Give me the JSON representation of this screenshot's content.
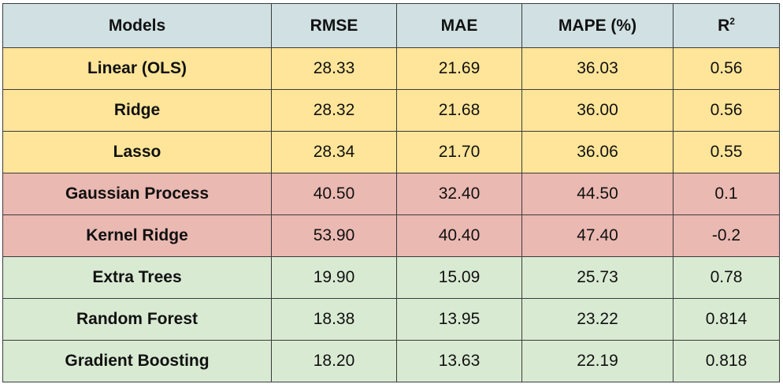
{
  "table": {
    "headers": {
      "model": "Models",
      "rmse": "RMSE",
      "mae": "MAE",
      "mape": "MAPE (%)",
      "r2_base": "R",
      "r2_sup": "2"
    },
    "colors": {
      "header": "#d0e0e3",
      "linear_group": "#ffe599",
      "kernel_group": "#eab9b2",
      "tree_group": "#d9ead3"
    },
    "rows": [
      {
        "model": "Linear (OLS)",
        "rmse": "28.33",
        "mae": "21.69",
        "mape": "36.03",
        "r2": "0.56"
      },
      {
        "model": "Ridge",
        "rmse": "28.32",
        "mae": "21.68",
        "mape": "36.00",
        "r2": "0.56"
      },
      {
        "model": "Lasso",
        "rmse": "28.34",
        "mae": "21.70",
        "mape": "36.06",
        "r2": "0.55"
      },
      {
        "model": "Gaussian Process",
        "rmse": "40.50",
        "mae": "32.40",
        "mape": "44.50",
        "r2": "0.1"
      },
      {
        "model": "Kernel Ridge",
        "rmse": "53.90",
        "mae": "40.40",
        "mape": "47.40",
        "r2": "-0.2"
      },
      {
        "model": "Extra Trees",
        "rmse": "19.90",
        "mae": "15.09",
        "mape": "25.73",
        "r2": "0.78"
      },
      {
        "model": "Random Forest",
        "rmse": "18.38",
        "mae": "13.95",
        "mape": "23.22",
        "r2": "0.814"
      },
      {
        "model": "Gradient Boosting",
        "rmse": "18.20",
        "mae": "13.63",
        "mape": "22.19",
        "r2": "0.818"
      }
    ]
  }
}
